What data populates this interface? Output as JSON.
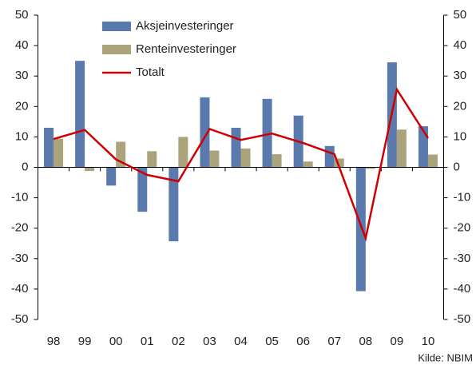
{
  "chart_data": {
    "type": "bar_line",
    "categories": [
      "98",
      "99",
      "00",
      "01",
      "02",
      "03",
      "04",
      "05",
      "06",
      "07",
      "08",
      "09",
      "10"
    ],
    "series": [
      {
        "name": "Aksjeinvesteringer",
        "type": "bar",
        "color": "#5a79ad",
        "values": [
          13,
          35,
          -6,
          -14.6,
          -24.3,
          23,
          13,
          22.5,
          17,
          7,
          -40.7,
          34.5,
          13.5
        ]
      },
      {
        "name": "Renteinvesteringer",
        "type": "bar",
        "color": "#aaa37b",
        "values": [
          9.4,
          -1.2,
          8.4,
          5.3,
          10,
          5.5,
          6.2,
          4.3,
          1.9,
          2.9,
          -0.5,
          12.4,
          4.2
        ]
      },
      {
        "name": "Totalt",
        "type": "line",
        "color": "#d00000",
        "values": [
          9.3,
          12.3,
          2.6,
          -2.5,
          -4.6,
          12.6,
          9,
          11.1,
          8,
          4.3,
          -23.3,
          25.6,
          9.6
        ]
      }
    ],
    "ylim": [
      -50,
      50
    ],
    "yticks": [
      -50,
      -40,
      -30,
      -20,
      -10,
      0,
      10,
      20,
      30,
      40,
      50
    ],
    "source": "Kilde: NBIM",
    "legend": "upper-left"
  }
}
